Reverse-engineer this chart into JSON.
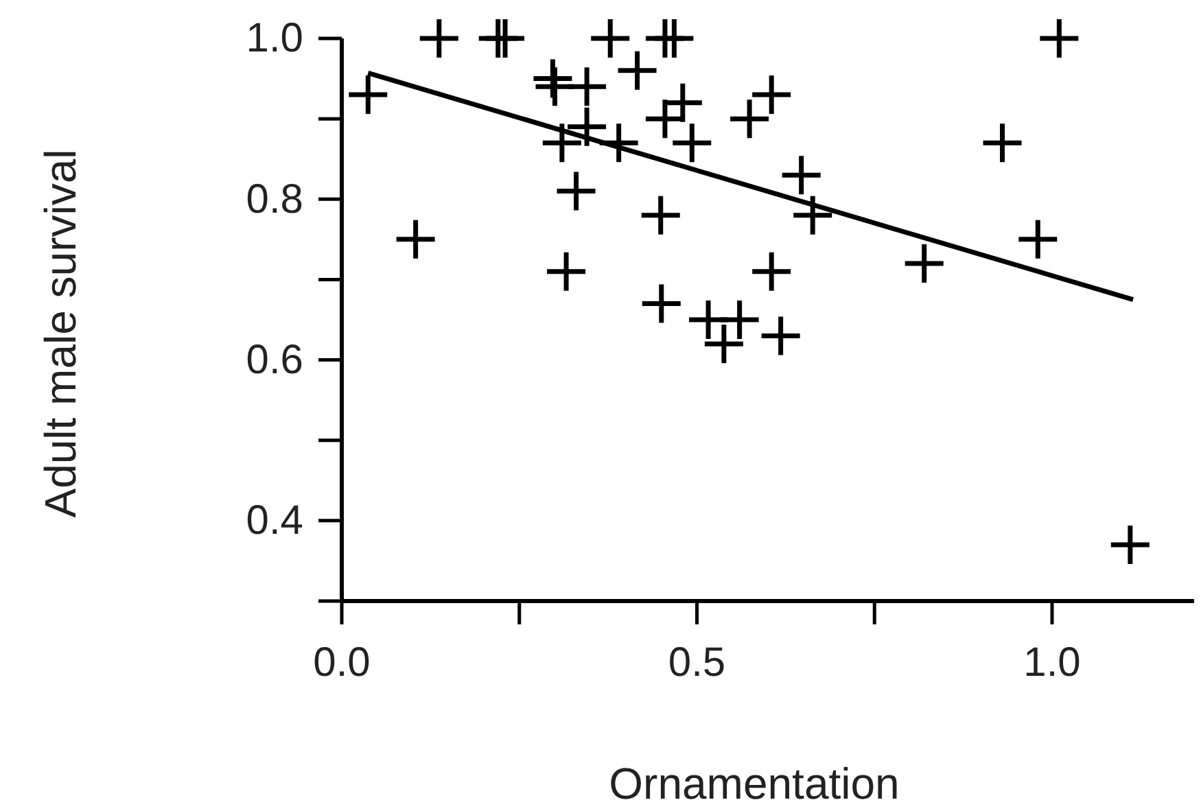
{
  "chart_data": {
    "type": "scatter",
    "xlabel": "Ornamentation",
    "ylabel": "Adult male survival",
    "marker": "cross",
    "grid": false,
    "xlim": [
      0,
      1.2
    ],
    "ylim": [
      0.3,
      1.0
    ],
    "xticks": [
      {
        "value": 0,
        "label": "0.0"
      },
      0.5,
      {
        "value": 1,
        "label": "1.0"
      }
    ],
    "yticks": [
      0.4,
      0.6,
      0.8,
      {
        "value": 1,
        "label": "1.0"
      }
    ],
    "series": [
      {
        "color": "#000000",
        "x": [
          0.037,
          0.137,
          0.22,
          0.23,
          0.378,
          0.455,
          0.468,
          0.297,
          0.3,
          0.345,
          0.416,
          0.48,
          0.455,
          0.345,
          0.31,
          0.39,
          0.493,
          0.574,
          0.33,
          0.449,
          0.104,
          0.316,
          0.45,
          0.516,
          0.56,
          0.538,
          0.605,
          0.647,
          0.663,
          0.605,
          0.618,
          0.82,
          0.93,
          0.98,
          1.01,
          1.11
        ],
        "values": [
          0.93,
          1.0,
          1.0,
          1.0,
          1.0,
          1.0,
          1.0,
          0.95,
          0.94,
          0.94,
          0.96,
          0.92,
          0.9,
          0.89,
          0.87,
          0.87,
          0.87,
          0.9,
          0.81,
          0.78,
          0.75,
          0.71,
          0.67,
          0.65,
          0.65,
          0.62,
          0.93,
          0.83,
          0.78,
          0.71,
          0.63,
          0.72,
          0.87,
          0.75,
          1.0,
          0.37
        ]
      },
      {
        "type": "line",
        "marker": "none",
        "color": "#000000",
        "x": [
          0.037,
          1.114
        ],
        "values": [
          0.957,
          0.675
        ]
      }
    ]
  }
}
